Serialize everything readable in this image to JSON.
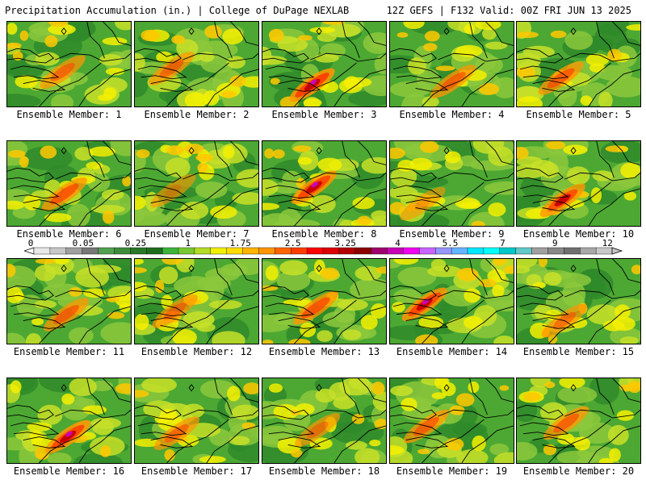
{
  "header": {
    "left": "Precipitation Accumulation (in.) | College of DuPage NEXLAB",
    "right": "12Z GEFS | F132 Valid: 00Z FRI JUN 13 2025"
  },
  "members": [
    {
      "label": "Ensemble Member: 1",
      "intensity": 0.55
    },
    {
      "label": "Ensemble Member: 2",
      "intensity": 0.55
    },
    {
      "label": "Ensemble Member: 3",
      "intensity": 0.9
    },
    {
      "label": "Ensemble Member: 4",
      "intensity": 0.6
    },
    {
      "label": "Ensemble Member: 5",
      "intensity": 0.65
    },
    {
      "label": "Ensemble Member: 6",
      "intensity": 0.7
    },
    {
      "label": "Ensemble Member: 7",
      "intensity": 0.25
    },
    {
      "label": "Ensemble Member: 8",
      "intensity": 0.85
    },
    {
      "label": "Ensemble Member: 9",
      "intensity": 0.25
    },
    {
      "label": "Ensemble Member: 10",
      "intensity": 0.75
    },
    {
      "label": "Ensemble Member: 11",
      "intensity": 0.6
    },
    {
      "label": "Ensemble Member: 12",
      "intensity": 0.5
    },
    {
      "label": "Ensemble Member: 13",
      "intensity": 0.7
    },
    {
      "label": "Ensemble Member: 14",
      "intensity": 0.85
    },
    {
      "label": "Ensemble Member: 15",
      "intensity": 0.5
    },
    {
      "label": "Ensemble Member: 16",
      "intensity": 0.85
    },
    {
      "label": "Ensemble Member: 17",
      "intensity": 0.55
    },
    {
      "label": "Ensemble Member: 18",
      "intensity": 0.45
    },
    {
      "label": "Ensemble Member: 19",
      "intensity": 0.6
    },
    {
      "label": "Ensemble Member: 20",
      "intensity": 0.6
    }
  ],
  "colorbar": {
    "labels": [
      "0",
      "0.05",
      "0.25",
      "1",
      "1.75",
      "2.5",
      "3.25",
      "4",
      "5.5",
      "7",
      "9",
      "12"
    ],
    "colors": [
      "#e8e8e8",
      "#c8c8c8",
      "#a0a0a0",
      "#787878",
      "#50a050",
      "#3c8c3c",
      "#287828",
      "#1e6e1e",
      "#3cb43c",
      "#78c832",
      "#b4dc28",
      "#f0f000",
      "#ffdc00",
      "#ffb400",
      "#ff9600",
      "#ff6400",
      "#ff3c00",
      "#ff0000",
      "#dc0000",
      "#b40000",
      "#8c0000",
      "#a0006e",
      "#c800b4",
      "#f000f0",
      "#c864ff",
      "#9696ff",
      "#64b4ff",
      "#00e6ff",
      "#00ffff",
      "#00c8c8",
      "#64c8c8",
      "#a0a0a0",
      "#888888",
      "#707070",
      "#a8a8a8",
      "#c8c8c8"
    ]
  }
}
